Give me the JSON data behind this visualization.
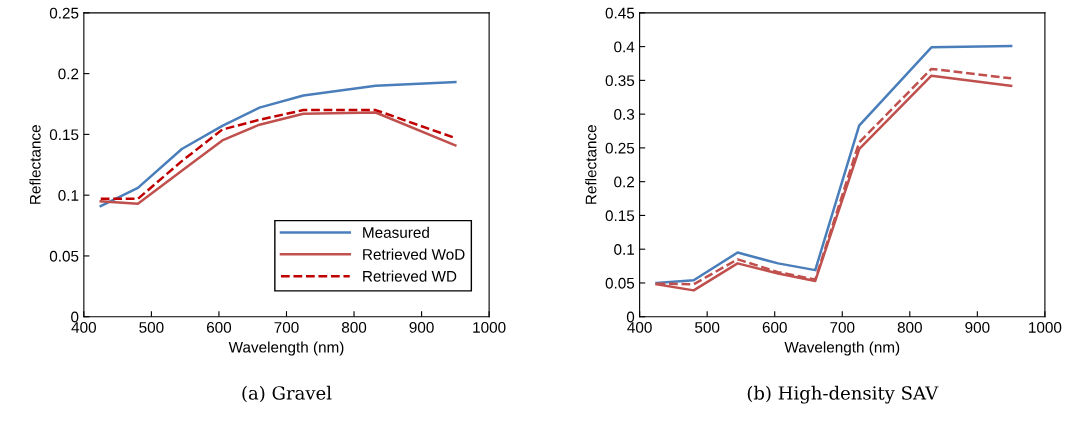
{
  "chart_data": [
    {
      "type": "line",
      "title": "(a) Gravel",
      "xlabel": "Wavelength (nm)",
      "ylabel": "Reflectance",
      "x": [
        425,
        480,
        545,
        605,
        660,
        725,
        832,
        950
      ],
      "xlim": [
        400,
        1000
      ],
      "xticks": [
        400,
        500,
        600,
        700,
        800,
        900,
        1000
      ],
      "ylim": [
        0,
        0.25
      ],
      "yticks": [
        0,
        0.05,
        0.1,
        0.15,
        0.2,
        0.25
      ],
      "grid": false,
      "legend": "bottom right",
      "marker": "none",
      "series": [
        {
          "name": "Measured",
          "color": "#4a7ebb",
          "line_style": "solid",
          "values": [
            0.091,
            0.106,
            0.138,
            0.157,
            0.172,
            0.182,
            0.19,
            0.193
          ]
        },
        {
          "name": "Retrieved WoD",
          "color": "#c0504d",
          "line_style": "solid",
          "values": [
            0.095,
            0.093,
            0.12,
            0.145,
            0.158,
            0.167,
            0.168,
            0.141
          ]
        },
        {
          "name": "Retrieved WD",
          "color": "#c00000",
          "line_style": "dashed",
          "values": [
            0.097,
            0.097,
            0.128,
            0.154,
            0.162,
            0.17,
            0.17,
            0.147
          ]
        }
      ]
    },
    {
      "type": "line",
      "title": "(b) High-density SAV",
      "xlabel": "Wavelength (nm)",
      "ylabel": "Reflectance",
      "x": [
        425,
        480,
        545,
        605,
        660,
        725,
        832,
        950
      ],
      "xlim": [
        400,
        1000
      ],
      "xticks": [
        400,
        500,
        600,
        700,
        800,
        900,
        1000
      ],
      "ylim": [
        0,
        0.45
      ],
      "yticks": [
        0,
        0.05,
        0.1,
        0.15,
        0.2,
        0.25,
        0.3,
        0.35,
        0.4,
        0.45
      ],
      "grid": false,
      "legend": false,
      "marker": "none",
      "series": [
        {
          "color": "#4a7ebb",
          "line_style": "solid",
          "values": [
            0.05,
            0.054,
            0.095,
            0.079,
            0.069,
            0.283,
            0.399,
            0.401
          ]
        },
        {
          "color": "#c0504d",
          "line_style": "solid",
          "values": [
            0.048,
            0.039,
            0.079,
            0.064,
            0.053,
            0.248,
            0.357,
            0.342
          ]
        },
        {
          "color": "#c0504d",
          "line_style": "dashed",
          "values": [
            0.049,
            0.048,
            0.085,
            0.066,
            0.055,
            0.258,
            0.367,
            0.353
          ]
        }
      ]
    }
  ]
}
